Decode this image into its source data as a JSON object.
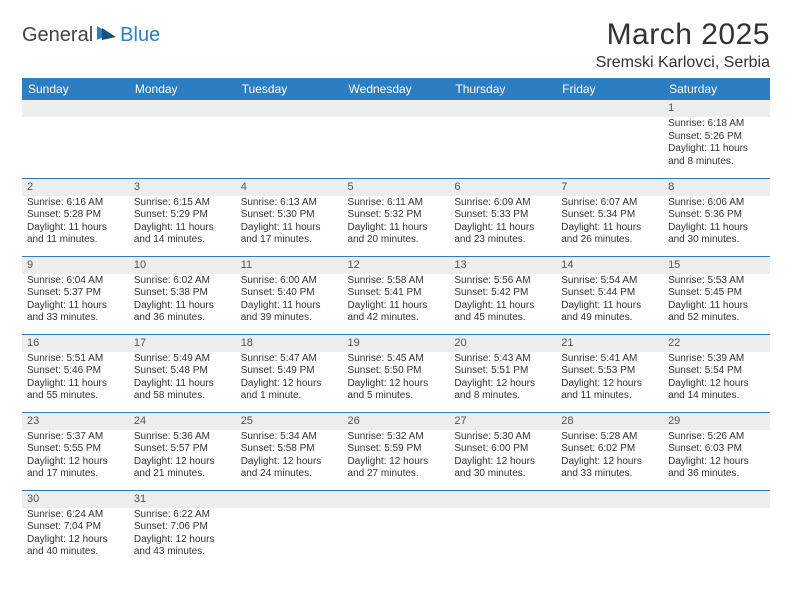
{
  "logo": {
    "text_dark": "General",
    "text_blue": "Blue"
  },
  "title": "March 2025",
  "location": "Sremski Karlovci, Serbia",
  "colors": {
    "header_bg": "#2d7dc1",
    "header_text": "#ffffff",
    "daynum_bg": "#ededed",
    "border": "#2d7dc1",
    "body_text": "#333333"
  },
  "weekdays": [
    "Sunday",
    "Monday",
    "Tuesday",
    "Wednesday",
    "Thursday",
    "Friday",
    "Saturday"
  ],
  "weeks": [
    [
      {
        "n": "",
        "lines": []
      },
      {
        "n": "",
        "lines": []
      },
      {
        "n": "",
        "lines": []
      },
      {
        "n": "",
        "lines": []
      },
      {
        "n": "",
        "lines": []
      },
      {
        "n": "",
        "lines": []
      },
      {
        "n": "1",
        "lines": [
          "Sunrise: 6:18 AM",
          "Sunset: 5:26 PM",
          "Daylight: 11 hours and 8 minutes."
        ]
      }
    ],
    [
      {
        "n": "2",
        "lines": [
          "Sunrise: 6:16 AM",
          "Sunset: 5:28 PM",
          "Daylight: 11 hours and 11 minutes."
        ]
      },
      {
        "n": "3",
        "lines": [
          "Sunrise: 6:15 AM",
          "Sunset: 5:29 PM",
          "Daylight: 11 hours and 14 minutes."
        ]
      },
      {
        "n": "4",
        "lines": [
          "Sunrise: 6:13 AM",
          "Sunset: 5:30 PM",
          "Daylight: 11 hours and 17 minutes."
        ]
      },
      {
        "n": "5",
        "lines": [
          "Sunrise: 6:11 AM",
          "Sunset: 5:32 PM",
          "Daylight: 11 hours and 20 minutes."
        ]
      },
      {
        "n": "6",
        "lines": [
          "Sunrise: 6:09 AM",
          "Sunset: 5:33 PM",
          "Daylight: 11 hours and 23 minutes."
        ]
      },
      {
        "n": "7",
        "lines": [
          "Sunrise: 6:07 AM",
          "Sunset: 5:34 PM",
          "Daylight: 11 hours and 26 minutes."
        ]
      },
      {
        "n": "8",
        "lines": [
          "Sunrise: 6:06 AM",
          "Sunset: 5:36 PM",
          "Daylight: 11 hours and 30 minutes."
        ]
      }
    ],
    [
      {
        "n": "9",
        "lines": [
          "Sunrise: 6:04 AM",
          "Sunset: 5:37 PM",
          "Daylight: 11 hours and 33 minutes."
        ]
      },
      {
        "n": "10",
        "lines": [
          "Sunrise: 6:02 AM",
          "Sunset: 5:38 PM",
          "Daylight: 11 hours and 36 minutes."
        ]
      },
      {
        "n": "11",
        "lines": [
          "Sunrise: 6:00 AM",
          "Sunset: 5:40 PM",
          "Daylight: 11 hours and 39 minutes."
        ]
      },
      {
        "n": "12",
        "lines": [
          "Sunrise: 5:58 AM",
          "Sunset: 5:41 PM",
          "Daylight: 11 hours and 42 minutes."
        ]
      },
      {
        "n": "13",
        "lines": [
          "Sunrise: 5:56 AM",
          "Sunset: 5:42 PM",
          "Daylight: 11 hours and 45 minutes."
        ]
      },
      {
        "n": "14",
        "lines": [
          "Sunrise: 5:54 AM",
          "Sunset: 5:44 PM",
          "Daylight: 11 hours and 49 minutes."
        ]
      },
      {
        "n": "15",
        "lines": [
          "Sunrise: 5:53 AM",
          "Sunset: 5:45 PM",
          "Daylight: 11 hours and 52 minutes."
        ]
      }
    ],
    [
      {
        "n": "16",
        "lines": [
          "Sunrise: 5:51 AM",
          "Sunset: 5:46 PM",
          "Daylight: 11 hours and 55 minutes."
        ]
      },
      {
        "n": "17",
        "lines": [
          "Sunrise: 5:49 AM",
          "Sunset: 5:48 PM",
          "Daylight: 11 hours and 58 minutes."
        ]
      },
      {
        "n": "18",
        "lines": [
          "Sunrise: 5:47 AM",
          "Sunset: 5:49 PM",
          "Daylight: 12 hours and 1 minute."
        ]
      },
      {
        "n": "19",
        "lines": [
          "Sunrise: 5:45 AM",
          "Sunset: 5:50 PM",
          "Daylight: 12 hours and 5 minutes."
        ]
      },
      {
        "n": "20",
        "lines": [
          "Sunrise: 5:43 AM",
          "Sunset: 5:51 PM",
          "Daylight: 12 hours and 8 minutes."
        ]
      },
      {
        "n": "21",
        "lines": [
          "Sunrise: 5:41 AM",
          "Sunset: 5:53 PM",
          "Daylight: 12 hours and 11 minutes."
        ]
      },
      {
        "n": "22",
        "lines": [
          "Sunrise: 5:39 AM",
          "Sunset: 5:54 PM",
          "Daylight: 12 hours and 14 minutes."
        ]
      }
    ],
    [
      {
        "n": "23",
        "lines": [
          "Sunrise: 5:37 AM",
          "Sunset: 5:55 PM",
          "Daylight: 12 hours and 17 minutes."
        ]
      },
      {
        "n": "24",
        "lines": [
          "Sunrise: 5:36 AM",
          "Sunset: 5:57 PM",
          "Daylight: 12 hours and 21 minutes."
        ]
      },
      {
        "n": "25",
        "lines": [
          "Sunrise: 5:34 AM",
          "Sunset: 5:58 PM",
          "Daylight: 12 hours and 24 minutes."
        ]
      },
      {
        "n": "26",
        "lines": [
          "Sunrise: 5:32 AM",
          "Sunset: 5:59 PM",
          "Daylight: 12 hours and 27 minutes."
        ]
      },
      {
        "n": "27",
        "lines": [
          "Sunrise: 5:30 AM",
          "Sunset: 6:00 PM",
          "Daylight: 12 hours and 30 minutes."
        ]
      },
      {
        "n": "28",
        "lines": [
          "Sunrise: 5:28 AM",
          "Sunset: 6:02 PM",
          "Daylight: 12 hours and 33 minutes."
        ]
      },
      {
        "n": "29",
        "lines": [
          "Sunrise: 5:26 AM",
          "Sunset: 6:03 PM",
          "Daylight: 12 hours and 36 minutes."
        ]
      }
    ],
    [
      {
        "n": "30",
        "lines": [
          "Sunrise: 6:24 AM",
          "Sunset: 7:04 PM",
          "Daylight: 12 hours and 40 minutes."
        ]
      },
      {
        "n": "31",
        "lines": [
          "Sunrise: 6:22 AM",
          "Sunset: 7:06 PM",
          "Daylight: 12 hours and 43 minutes."
        ]
      },
      {
        "n": "",
        "lines": []
      },
      {
        "n": "",
        "lines": []
      },
      {
        "n": "",
        "lines": []
      },
      {
        "n": "",
        "lines": []
      },
      {
        "n": "",
        "lines": []
      }
    ]
  ]
}
